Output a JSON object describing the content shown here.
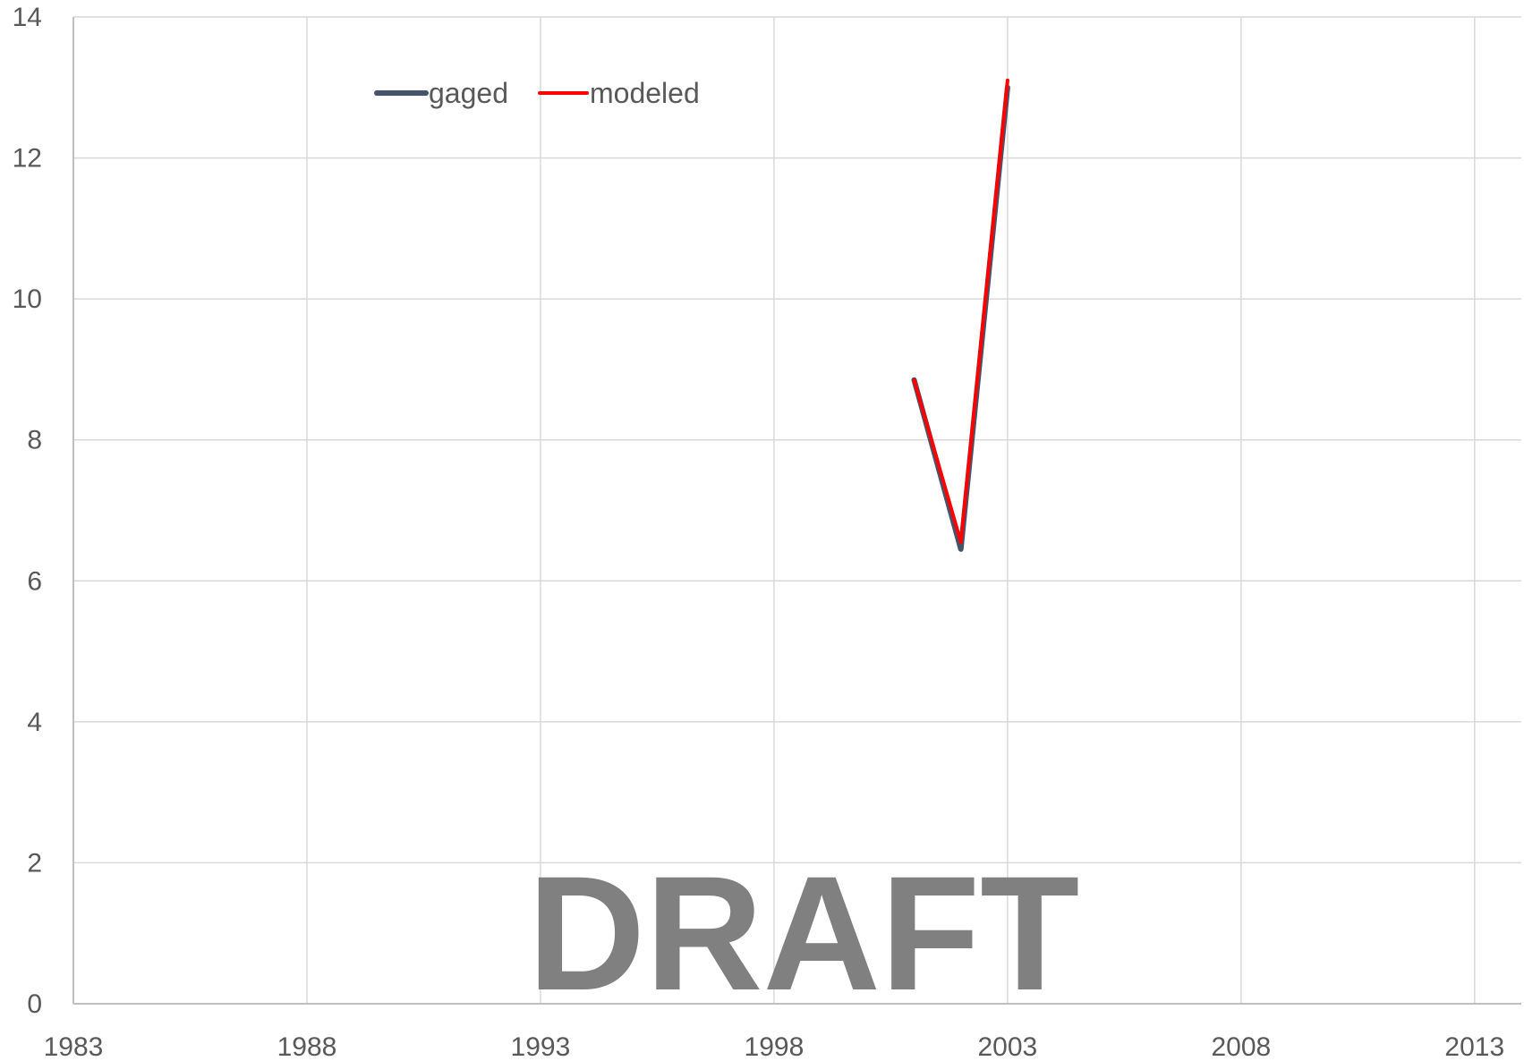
{
  "chart_data": {
    "type": "line",
    "title": "",
    "xlabel": "",
    "ylabel": "",
    "xlim": [
      1983,
      2014
    ],
    "ylim": [
      0,
      14
    ],
    "x_ticks": [
      1983,
      1988,
      1993,
      1998,
      2003,
      2008,
      2013
    ],
    "y_ticks": [
      0,
      2,
      4,
      6,
      8,
      10,
      12,
      14
    ],
    "x_tick_labels": [
      "1983",
      "1988",
      "1993",
      "1998",
      "2003",
      "2008",
      "2013"
    ],
    "y_tick_labels": [
      "0",
      "2",
      "4",
      "6",
      "8",
      "10",
      "12",
      "14"
    ],
    "grid": true,
    "legend": {
      "position": "top-left",
      "orientation": "horizontal"
    },
    "series": [
      {
        "name": "gaged",
        "color": "#44546a",
        "points": [
          {
            "x": 2001,
            "y": 8.85
          },
          {
            "x": 2002,
            "y": 6.45
          },
          {
            "x": 2003,
            "y": 13.0
          }
        ]
      },
      {
        "name": "modeled",
        "color": "#ff0000",
        "points": [
          {
            "x": 2001,
            "y": 8.85
          },
          {
            "x": 2002,
            "y": 6.55
          },
          {
            "x": 2003,
            "y": 13.1
          }
        ]
      }
    ],
    "watermark": "DRAFT"
  }
}
